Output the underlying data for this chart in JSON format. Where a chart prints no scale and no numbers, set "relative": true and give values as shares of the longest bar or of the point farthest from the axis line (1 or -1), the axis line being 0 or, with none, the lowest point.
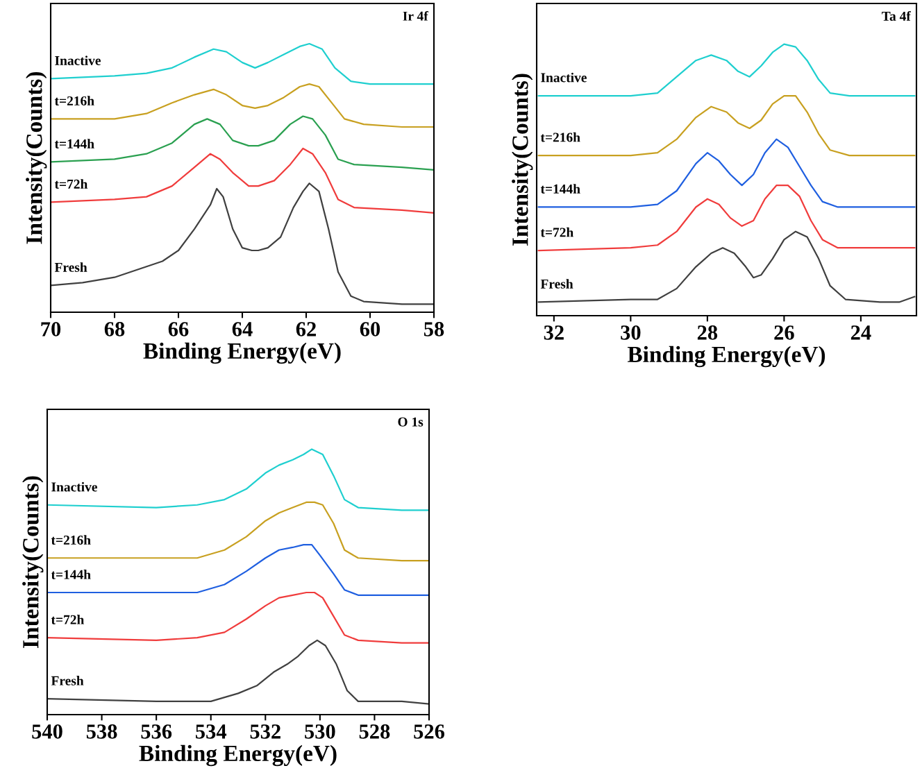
{
  "chart_data": [
    {
      "type": "line",
      "title": "Ir 4f",
      "xlabel": "Binding Energy(eV)",
      "ylabel": "Intensity(Counts)",
      "relative": true,
      "xlim": [
        70,
        58
      ],
      "xticks": [
        70,
        68,
        66,
        64,
        62,
        60,
        58
      ],
      "legend": false,
      "grid": false,
      "series": [
        {
          "name": "Fresh",
          "color": "#404040",
          "x": [
            70,
            69,
            68,
            67,
            66.5,
            66,
            65.5,
            65,
            64.8,
            64.6,
            64.3,
            64,
            63.7,
            63.5,
            63.2,
            62.8,
            62.4,
            62.1,
            61.9,
            61.6,
            61.3,
            61,
            60.6,
            60.2,
            59,
            58
          ],
          "values": [
            0.1,
            0.11,
            0.13,
            0.17,
            0.19,
            0.23,
            0.31,
            0.4,
            0.46,
            0.43,
            0.31,
            0.24,
            0.23,
            0.23,
            0.24,
            0.28,
            0.39,
            0.45,
            0.48,
            0.45,
            0.31,
            0.15,
            0.06,
            0.04,
            0.03,
            0.03
          ]
        },
        {
          "name": "t=72h",
          "color": "#f03c3c",
          "x": [
            70,
            68,
            67,
            66.2,
            65.5,
            65,
            64.7,
            64.3,
            63.8,
            63.5,
            63,
            62.5,
            62.1,
            61.8,
            61.4,
            61,
            60.5,
            59,
            58
          ],
          "values": [
            0.41,
            0.42,
            0.43,
            0.47,
            0.54,
            0.59,
            0.57,
            0.52,
            0.47,
            0.47,
            0.49,
            0.55,
            0.61,
            0.59,
            0.52,
            0.42,
            0.39,
            0.38,
            0.37
          ]
        },
        {
          "name": "t=144h",
          "color": "#2aa050",
          "x": [
            70,
            68,
            67,
            66.2,
            65.5,
            65.1,
            64.7,
            64.3,
            63.8,
            63.5,
            63,
            62.5,
            62.1,
            61.8,
            61.4,
            61,
            60.5,
            59,
            58
          ],
          "values": [
            0.56,
            0.57,
            0.59,
            0.63,
            0.7,
            0.72,
            0.7,
            0.64,
            0.62,
            0.62,
            0.64,
            0.7,
            0.73,
            0.72,
            0.66,
            0.57,
            0.55,
            0.54,
            0.53
          ]
        },
        {
          "name": "t=216h",
          "color": "#c8a020",
          "x": [
            70,
            68,
            67,
            66.2,
            65.5,
            64.9,
            64.5,
            64,
            63.6,
            63.2,
            62.7,
            62.2,
            61.9,
            61.6,
            61.2,
            60.8,
            60.2,
            59,
            58
          ],
          "values": [
            0.72,
            0.72,
            0.74,
            0.78,
            0.81,
            0.83,
            0.81,
            0.77,
            0.76,
            0.77,
            0.8,
            0.84,
            0.85,
            0.84,
            0.78,
            0.72,
            0.7,
            0.69,
            0.69
          ]
        },
        {
          "name": "Inactive",
          "color": "#1fcfcf",
          "x": [
            70,
            68,
            67,
            66.2,
            65.5,
            64.9,
            64.5,
            64,
            63.6,
            63.2,
            62.7,
            62.2,
            61.9,
            61.5,
            61.1,
            60.6,
            60,
            59,
            58
          ],
          "values": [
            0.87,
            0.88,
            0.89,
            0.91,
            0.95,
            0.98,
            0.97,
            0.93,
            0.91,
            0.93,
            0.96,
            0.99,
            1.0,
            0.98,
            0.91,
            0.86,
            0.85,
            0.85,
            0.85
          ]
        }
      ]
    },
    {
      "type": "line",
      "title": "Ta 4f",
      "xlabel": "Binding Energy(eV)",
      "ylabel": "Intensity(Counts)",
      "relative": true,
      "xlim": [
        32.45,
        22.55
      ],
      "xticks": [
        32,
        30,
        28,
        26,
        24
      ],
      "legend": false,
      "grid": false,
      "series": [
        {
          "name": "Fresh",
          "color": "#404040",
          "x": [
            32.4,
            30,
            29.3,
            28.8,
            28.3,
            27.9,
            27.6,
            27.3,
            27,
            26.8,
            26.6,
            26.3,
            26,
            25.7,
            25.4,
            25.1,
            24.8,
            24.4,
            23.5,
            23,
            22.6
          ],
          "values": [
            0.05,
            0.06,
            0.06,
            0.1,
            0.18,
            0.23,
            0.25,
            0.23,
            0.18,
            0.14,
            0.15,
            0.21,
            0.28,
            0.31,
            0.29,
            0.21,
            0.11,
            0.06,
            0.05,
            0.05,
            0.07
          ]
        },
        {
          "name": "t=72h",
          "color": "#f03c3c",
          "x": [
            32.4,
            30,
            29.3,
            28.8,
            28.3,
            28,
            27.7,
            27.4,
            27.1,
            26.8,
            26.5,
            26.2,
            25.9,
            25.6,
            25.3,
            25,
            24.6,
            23.5,
            22.6
          ],
          "values": [
            0.24,
            0.25,
            0.26,
            0.31,
            0.4,
            0.43,
            0.41,
            0.36,
            0.33,
            0.35,
            0.43,
            0.48,
            0.48,
            0.44,
            0.35,
            0.28,
            0.25,
            0.25,
            0.25
          ]
        },
        {
          "name": "t=144h",
          "color": "#1f5fe0",
          "x": [
            32.4,
            30,
            29.3,
            28.8,
            28.3,
            28,
            27.7,
            27.4,
            27.1,
            26.8,
            26.5,
            26.2,
            25.9,
            25.6,
            25.3,
            25,
            24.6,
            23.5,
            22.6
          ],
          "values": [
            0.4,
            0.4,
            0.41,
            0.46,
            0.56,
            0.6,
            0.57,
            0.52,
            0.48,
            0.52,
            0.6,
            0.65,
            0.62,
            0.55,
            0.48,
            0.42,
            0.4,
            0.4,
            0.4
          ]
        },
        {
          "name": "t=216h",
          "color": "#c8a020",
          "x": [
            32.4,
            30,
            29.3,
            28.8,
            28.3,
            27.9,
            27.5,
            27.2,
            26.9,
            26.6,
            26.3,
            26,
            25.7,
            25.4,
            25.1,
            24.8,
            24.3,
            23.5,
            22.6
          ],
          "values": [
            0.59,
            0.59,
            0.6,
            0.65,
            0.73,
            0.77,
            0.75,
            0.71,
            0.69,
            0.72,
            0.78,
            0.81,
            0.81,
            0.75,
            0.67,
            0.61,
            0.59,
            0.59,
            0.59
          ]
        },
        {
          "name": "Inactive",
          "color": "#1fcfcf",
          "x": [
            32.4,
            30,
            29.3,
            28.8,
            28.3,
            27.9,
            27.5,
            27.2,
            26.9,
            26.6,
            26.3,
            26,
            25.7,
            25.4,
            25.1,
            24.8,
            24.3,
            23.5,
            22.6
          ],
          "values": [
            0.81,
            0.81,
            0.82,
            0.88,
            0.94,
            0.96,
            0.94,
            0.9,
            0.88,
            0.92,
            0.97,
            1.0,
            0.99,
            0.94,
            0.87,
            0.82,
            0.81,
            0.81,
            0.81
          ]
        }
      ]
    },
    {
      "type": "line",
      "title": "O 1s",
      "xlabel": "Binding Energy(eV)",
      "ylabel": "Intensity(Counts)",
      "relative": true,
      "xlim": [
        540,
        526
      ],
      "xticks": [
        540,
        538,
        536,
        534,
        532,
        530,
        528,
        526
      ],
      "legend": false,
      "grid": false,
      "series": [
        {
          "name": "Fresh",
          "color": "#404040",
          "x": [
            540,
            536,
            534,
            533,
            532.3,
            531.7,
            531.2,
            530.8,
            530.4,
            530.1,
            529.8,
            529.4,
            529,
            528.6,
            527,
            526
          ],
          "values": [
            0.06,
            0.05,
            0.05,
            0.08,
            0.11,
            0.16,
            0.19,
            0.22,
            0.26,
            0.28,
            0.26,
            0.19,
            0.09,
            0.05,
            0.05,
            0.04
          ]
        },
        {
          "name": "t=72h",
          "color": "#f03c3c",
          "x": [
            540,
            536,
            534.5,
            533.5,
            532.7,
            532,
            531.5,
            531,
            530.5,
            530.2,
            529.9,
            529.5,
            529.1,
            528.6,
            527,
            526
          ],
          "values": [
            0.29,
            0.28,
            0.29,
            0.31,
            0.36,
            0.41,
            0.44,
            0.45,
            0.46,
            0.46,
            0.44,
            0.37,
            0.3,
            0.28,
            0.27,
            0.27
          ]
        },
        {
          "name": "t=144h",
          "color": "#1f5fe0",
          "x": [
            540,
            536,
            534.5,
            533.5,
            532.7,
            532,
            531.5,
            531,
            530.6,
            530.3,
            530,
            529.5,
            529.1,
            528.6,
            527,
            526
          ],
          "values": [
            0.46,
            0.46,
            0.46,
            0.49,
            0.54,
            0.59,
            0.62,
            0.63,
            0.64,
            0.64,
            0.6,
            0.53,
            0.47,
            0.45,
            0.45,
            0.45
          ]
        },
        {
          "name": "t=216h",
          "color": "#c8a020",
          "x": [
            540,
            536,
            534.5,
            533.5,
            532.7,
            532,
            531.5,
            531,
            530.5,
            530.2,
            529.9,
            529.5,
            529.1,
            528.6,
            527,
            526
          ],
          "values": [
            0.59,
            0.59,
            0.59,
            0.62,
            0.67,
            0.73,
            0.76,
            0.78,
            0.8,
            0.8,
            0.79,
            0.72,
            0.62,
            0.59,
            0.58,
            0.58
          ]
        },
        {
          "name": "Inactive",
          "color": "#1fcfcf",
          "x": [
            540,
            536,
            534.5,
            533.5,
            532.7,
            532,
            531.5,
            531,
            530.6,
            530.3,
            529.9,
            529.5,
            529.1,
            528.6,
            527,
            526
          ],
          "values": [
            0.79,
            0.78,
            0.79,
            0.81,
            0.85,
            0.91,
            0.94,
            0.96,
            0.98,
            1.0,
            0.98,
            0.9,
            0.81,
            0.78,
            0.77,
            0.77
          ]
        }
      ]
    }
  ]
}
